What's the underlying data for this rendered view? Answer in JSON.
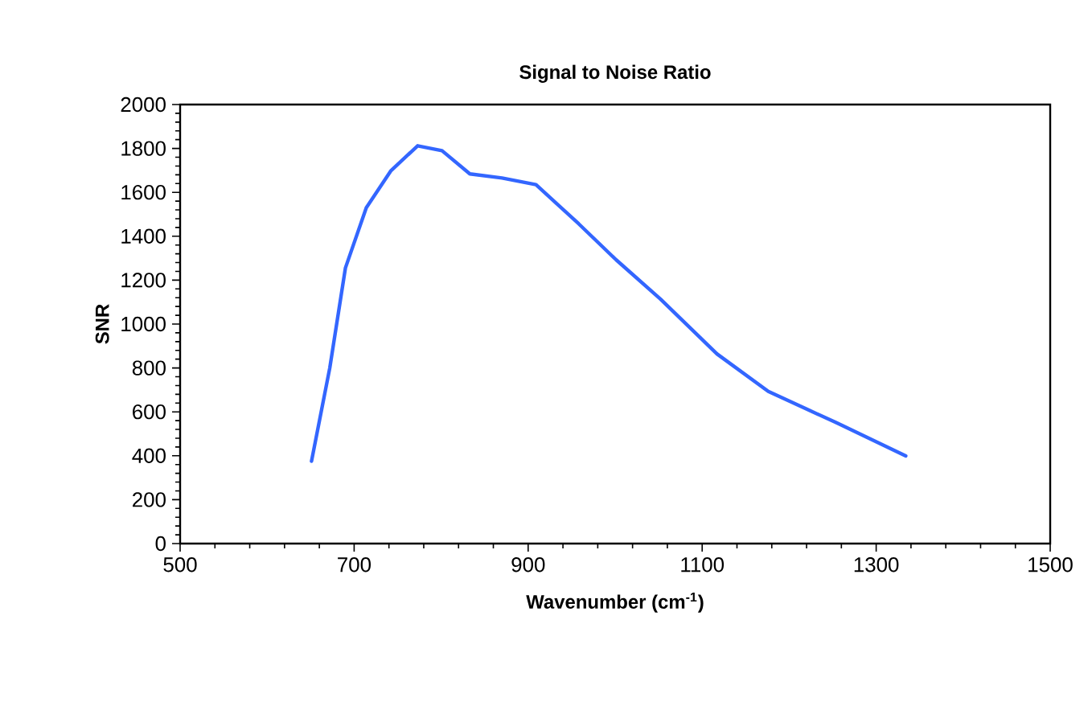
{
  "chart_data": {
    "type": "line",
    "title": "Signal to Noise Ratio",
    "xlabel": "Wavenumber (cm$^{-1}$)",
    "ylabel": "SNR",
    "series": [
      {
        "color": "#3366ff",
        "x": [
          651,
          672,
          690,
          714,
          742,
          773,
          801,
          833,
          870,
          909,
          958,
          1001,
          1052,
          1117,
          1176,
          1254,
          1334
        ],
        "values": [
          375,
          800,
          1256,
          1530,
          1697,
          1812,
          1790,
          1684,
          1665,
          1635,
          1457,
          1293,
          1114,
          864,
          693,
          551,
          399
        ]
      }
    ],
    "xlim": [
      500,
      1500
    ],
    "xticks": [
      500,
      700,
      900,
      1100,
      1300,
      1500
    ],
    "ylim": [
      0,
      2000
    ],
    "yticks": [
      0,
      200,
      400,
      600,
      800,
      1000,
      1200,
      1400,
      1600,
      1800,
      2000
    ],
    "grid": false,
    "marker": "none",
    "line_style": "solid"
  }
}
